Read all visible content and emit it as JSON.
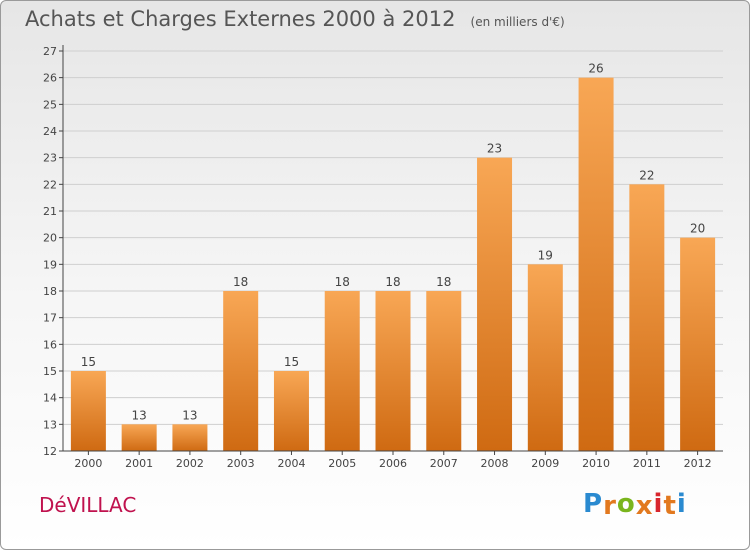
{
  "header": {
    "title": "Achats et Charges Externes 2000 à 2012",
    "unit": "(en milliers d'€)"
  },
  "footer": {
    "commune": "DéVILLAC",
    "logo_letters": [
      "P",
      "r",
      "o",
      "x",
      "i",
      "t",
      "i"
    ],
    "logo_colors": [
      "#2a8ad0",
      "#e2791f",
      "#7ab51d",
      "#e2791f",
      "#d8262e",
      "#e2791f",
      "#2a8ad0"
    ]
  },
  "colors": {
    "bar_light": "#f8a755",
    "bar_dark": "#cf6a12",
    "grid": "#cfcfcf",
    "axis": "#444444",
    "text": "#444444"
  },
  "chart_data": {
    "type": "bar",
    "title": "Achats et Charges Externes 2000 à 2012",
    "subtitle": "(en milliers d'€)",
    "categories": [
      "2000",
      "2001",
      "2002",
      "2003",
      "2004",
      "2005",
      "2006",
      "2007",
      "2008",
      "2009",
      "2010",
      "2011",
      "2012"
    ],
    "values": [
      15,
      13,
      13,
      18,
      15,
      18,
      18,
      18,
      23,
      19,
      26,
      22,
      20
    ],
    "ylim": [
      12,
      27
    ],
    "yticks": [
      12,
      13,
      14,
      15,
      16,
      17,
      18,
      19,
      20,
      21,
      22,
      23,
      24,
      25,
      26,
      27
    ],
    "grid": "horizontal",
    "legend": "none",
    "data_labels": true
  }
}
